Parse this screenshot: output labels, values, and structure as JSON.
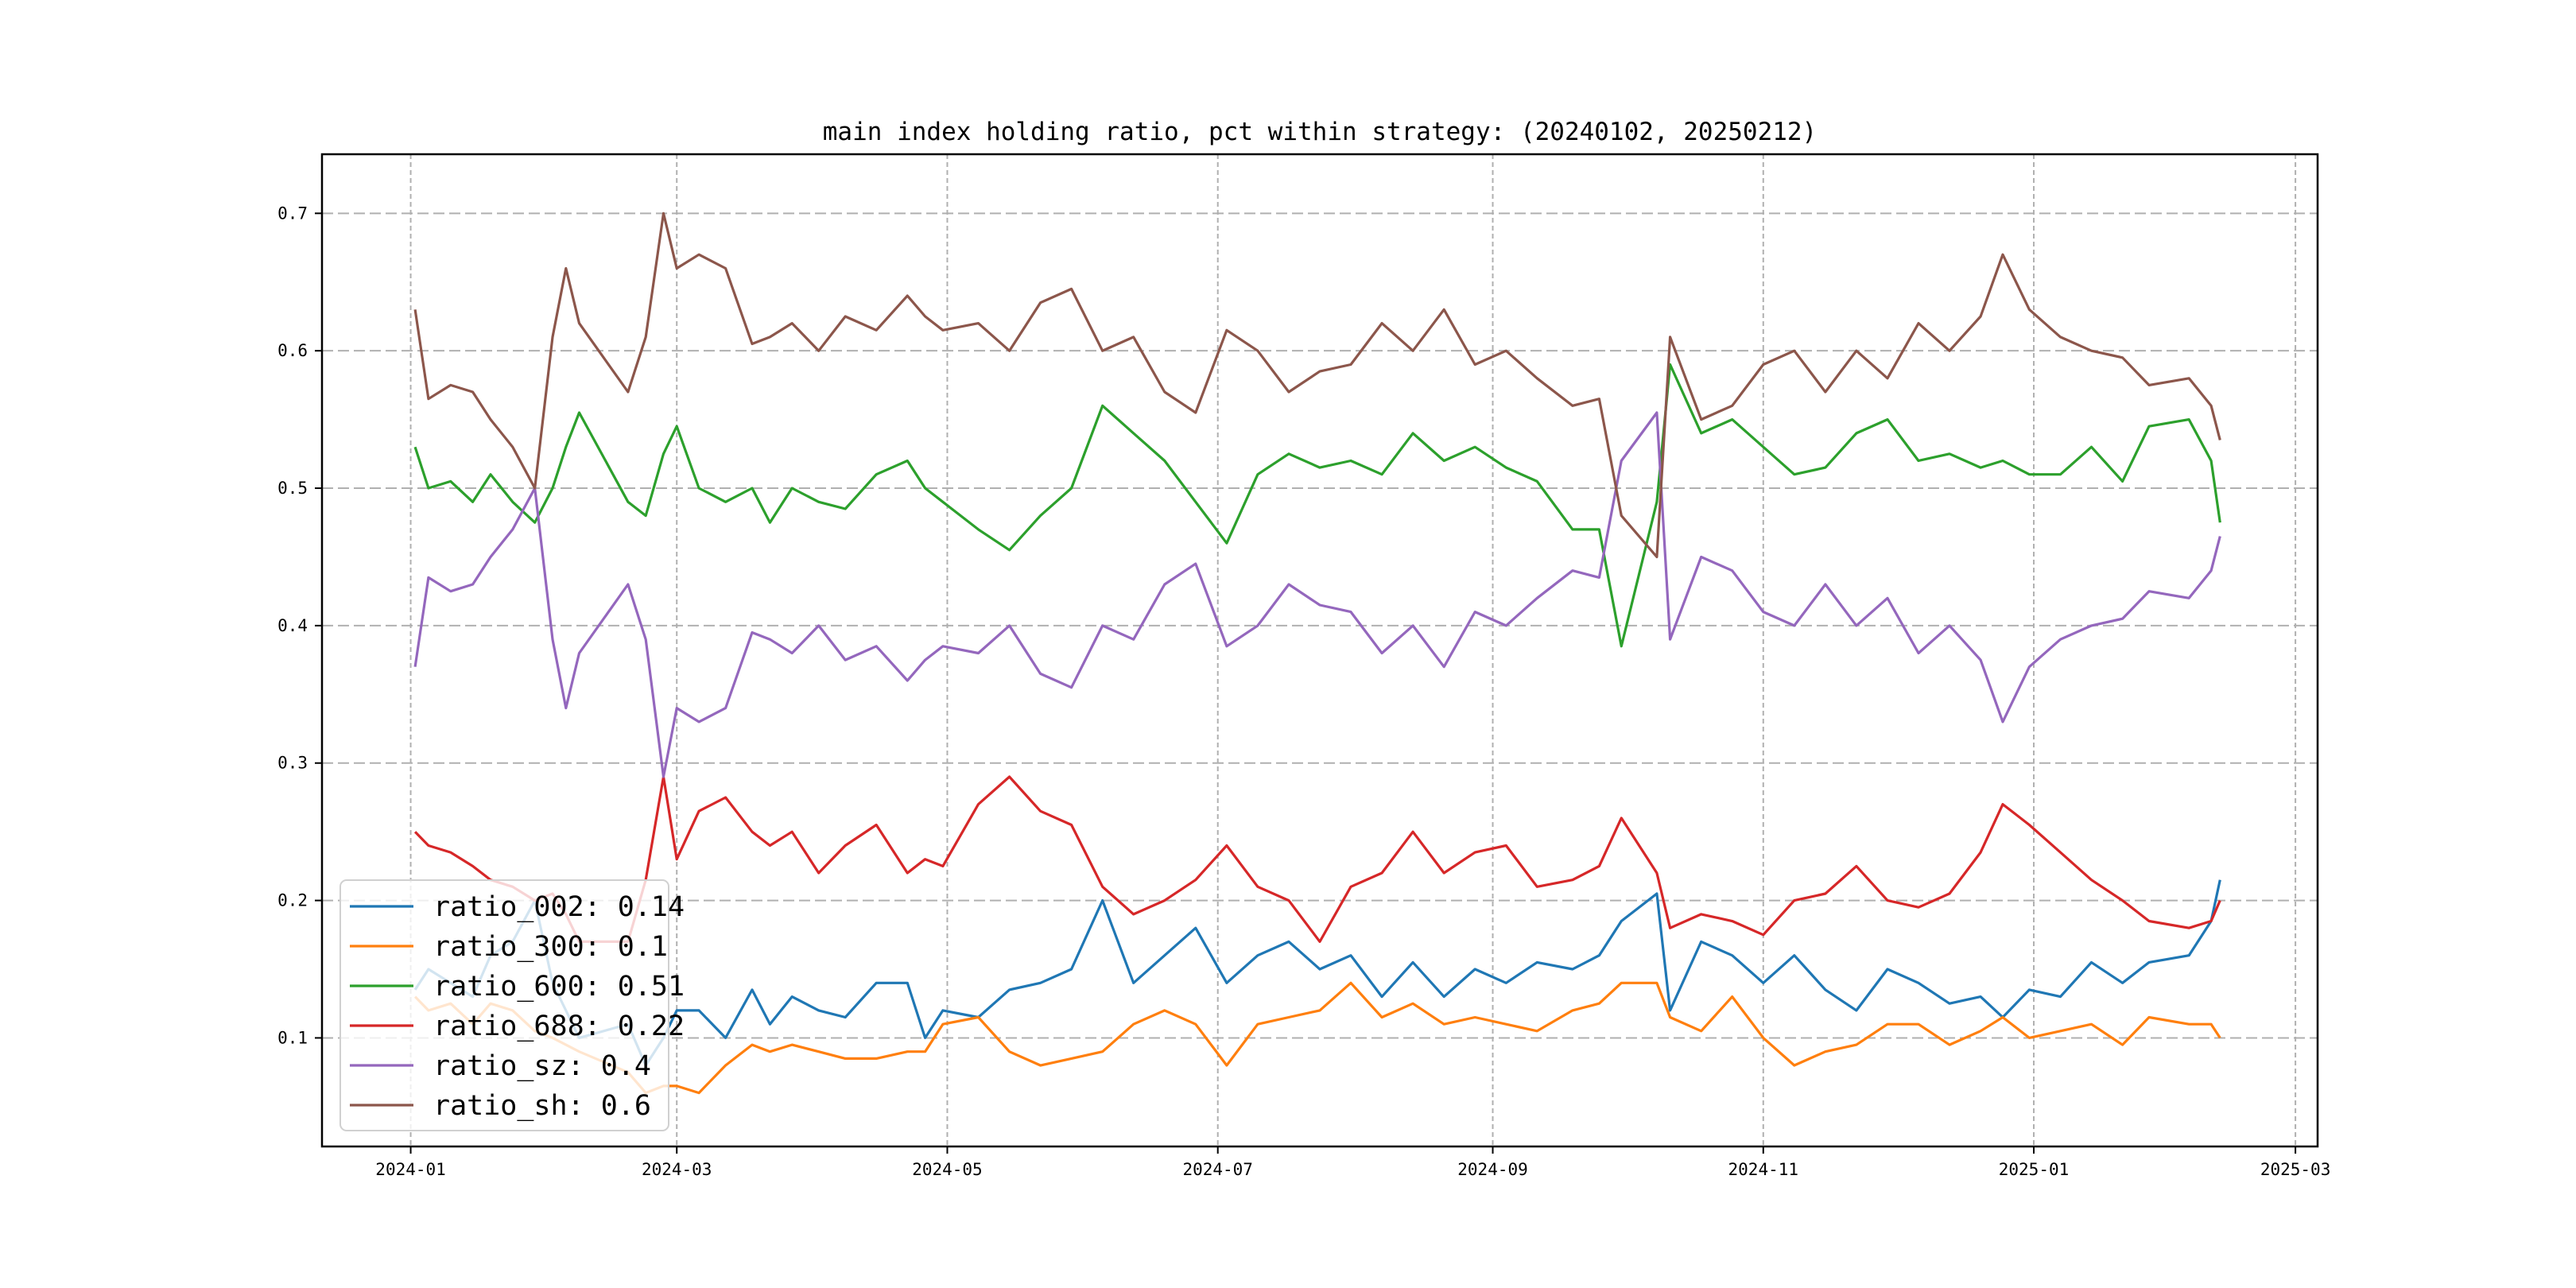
{
  "chart_data": {
    "type": "line",
    "title": "main index holding ratio, pct within strategy: (20240102, 20250212)",
    "xlabel": "",
    "ylabel": "",
    "xlim": [
      "2023-12-12",
      "2025-03-06"
    ],
    "ylim": [
      0.021,
      0.743
    ],
    "grid": true,
    "legend_position": "bottom-left",
    "x_ticks": [
      "2024-01",
      "2024-03",
      "2024-05",
      "2024-07",
      "2024-09",
      "2024-11",
      "2025-01",
      "2025-03"
    ],
    "y_ticks": [
      "0.1",
      "0.2",
      "0.3",
      "0.4",
      "0.5",
      "0.6",
      "0.7"
    ],
    "x": [
      "2024-01-02",
      "2024-01-05",
      "2024-01-10",
      "2024-01-15",
      "2024-01-19",
      "2024-01-24",
      "2024-01-29",
      "2024-02-02",
      "2024-02-05",
      "2024-02-08",
      "2024-02-19",
      "2024-02-23",
      "2024-02-27",
      "2024-03-01",
      "2024-03-06",
      "2024-03-12",
      "2024-03-18",
      "2024-03-22",
      "2024-03-27",
      "2024-04-02",
      "2024-04-08",
      "2024-04-15",
      "2024-04-22",
      "2024-04-26",
      "2024-04-30",
      "2024-05-08",
      "2024-05-15",
      "2024-05-22",
      "2024-05-29",
      "2024-06-05",
      "2024-06-12",
      "2024-06-19",
      "2024-06-26",
      "2024-07-03",
      "2024-07-10",
      "2024-07-17",
      "2024-07-24",
      "2024-07-31",
      "2024-08-07",
      "2024-08-14",
      "2024-08-21",
      "2024-08-28",
      "2024-09-04",
      "2024-09-11",
      "2024-09-19",
      "2024-09-25",
      "2024-09-30",
      "2024-10-08",
      "2024-10-11",
      "2024-10-18",
      "2024-10-25",
      "2024-11-01",
      "2024-11-08",
      "2024-11-15",
      "2024-11-22",
      "2024-11-29",
      "2024-12-06",
      "2024-12-13",
      "2024-12-20",
      "2024-12-25",
      "2024-12-31",
      "2025-01-07",
      "2025-01-14",
      "2025-01-21",
      "2025-01-27",
      "2025-02-05",
      "2025-02-10",
      "2025-02-12"
    ],
    "series": [
      {
        "name": "ratio_002",
        "legend": "ratio_002: 0.14",
        "color": "#1f77b4",
        "values": [
          0.135,
          0.15,
          0.14,
          0.13,
          0.16,
          0.17,
          0.2,
          0.14,
          0.12,
          0.1,
          0.11,
          0.08,
          0.1,
          0.12,
          0.12,
          0.1,
          0.135,
          0.11,
          0.13,
          0.12,
          0.115,
          0.14,
          0.14,
          0.1,
          0.12,
          0.115,
          0.135,
          0.14,
          0.15,
          0.2,
          0.14,
          0.16,
          0.18,
          0.14,
          0.16,
          0.17,
          0.15,
          0.16,
          0.13,
          0.155,
          0.13,
          0.15,
          0.14,
          0.155,
          0.15,
          0.16,
          0.185,
          0.205,
          0.12,
          0.17,
          0.16,
          0.14,
          0.16,
          0.135,
          0.12,
          0.15,
          0.14,
          0.125,
          0.13,
          0.115,
          0.135,
          0.13,
          0.155,
          0.14,
          0.155,
          0.16,
          0.185,
          0.215
        ]
      },
      {
        "name": "ratio_300",
        "legend": "ratio_300: 0.1",
        "color": "#ff7f0e",
        "values": [
          0.13,
          0.12,
          0.125,
          0.11,
          0.125,
          0.12,
          0.105,
          0.1,
          0.095,
          0.09,
          0.075,
          0.06,
          0.065,
          0.065,
          0.06,
          0.08,
          0.095,
          0.09,
          0.095,
          0.09,
          0.085,
          0.085,
          0.09,
          0.09,
          0.11,
          0.115,
          0.09,
          0.08,
          0.085,
          0.09,
          0.11,
          0.12,
          0.11,
          0.08,
          0.11,
          0.115,
          0.12,
          0.14,
          0.115,
          0.125,
          0.11,
          0.115,
          0.11,
          0.105,
          0.12,
          0.125,
          0.14,
          0.14,
          0.115,
          0.105,
          0.13,
          0.1,
          0.08,
          0.09,
          0.095,
          0.11,
          0.11,
          0.095,
          0.105,
          0.115,
          0.1,
          0.105,
          0.11,
          0.095,
          0.115,
          0.11,
          0.11,
          0.1
        ]
      },
      {
        "name": "ratio_600",
        "legend": "ratio_600: 0.51",
        "color": "#2ca02c",
        "values": [
          0.53,
          0.5,
          0.505,
          0.49,
          0.51,
          0.49,
          0.475,
          0.5,
          0.53,
          0.555,
          0.49,
          0.48,
          0.525,
          0.545,
          0.5,
          0.49,
          0.5,
          0.475,
          0.5,
          0.49,
          0.485,
          0.51,
          0.52,
          0.5,
          0.49,
          0.47,
          0.455,
          0.48,
          0.5,
          0.56,
          0.54,
          0.52,
          0.49,
          0.46,
          0.51,
          0.525,
          0.515,
          0.52,
          0.51,
          0.54,
          0.52,
          0.53,
          0.515,
          0.505,
          0.47,
          0.47,
          0.385,
          0.49,
          0.59,
          0.54,
          0.55,
          0.53,
          0.51,
          0.515,
          0.54,
          0.55,
          0.52,
          0.525,
          0.515,
          0.52,
          0.51,
          0.51,
          0.53,
          0.505,
          0.545,
          0.55,
          0.52,
          0.475
        ]
      },
      {
        "name": "ratio_688",
        "legend": "ratio_688: 0.22",
        "color": "#d62728",
        "values": [
          0.25,
          0.24,
          0.235,
          0.225,
          0.215,
          0.21,
          0.2,
          0.205,
          0.19,
          0.17,
          0.17,
          0.215,
          0.29,
          0.23,
          0.265,
          0.275,
          0.25,
          0.24,
          0.25,
          0.22,
          0.24,
          0.255,
          0.22,
          0.23,
          0.225,
          0.27,
          0.29,
          0.265,
          0.255,
          0.21,
          0.19,
          0.2,
          0.215,
          0.24,
          0.21,
          0.2,
          0.17,
          0.21,
          0.22,
          0.25,
          0.22,
          0.235,
          0.24,
          0.21,
          0.215,
          0.225,
          0.26,
          0.22,
          0.18,
          0.19,
          0.185,
          0.175,
          0.2,
          0.205,
          0.225,
          0.2,
          0.195,
          0.205,
          0.235,
          0.27,
          0.255,
          0.235,
          0.215,
          0.2,
          0.185,
          0.18,
          0.185,
          0.2
        ]
      },
      {
        "name": "ratio_sz",
        "legend": "ratio_sz: 0.4",
        "color": "#9467bd",
        "values": [
          0.37,
          0.435,
          0.425,
          0.43,
          0.45,
          0.47,
          0.5,
          0.39,
          0.34,
          0.38,
          0.43,
          0.39,
          0.29,
          0.34,
          0.33,
          0.34,
          0.395,
          0.39,
          0.38,
          0.4,
          0.375,
          0.385,
          0.36,
          0.375,
          0.385,
          0.38,
          0.4,
          0.365,
          0.355,
          0.4,
          0.39,
          0.43,
          0.445,
          0.385,
          0.4,
          0.43,
          0.415,
          0.41,
          0.38,
          0.4,
          0.37,
          0.41,
          0.4,
          0.42,
          0.44,
          0.435,
          0.52,
          0.555,
          0.39,
          0.45,
          0.44,
          0.41,
          0.4,
          0.43,
          0.4,
          0.42,
          0.38,
          0.4,
          0.375,
          0.33,
          0.37,
          0.39,
          0.4,
          0.405,
          0.425,
          0.42,
          0.44,
          0.465
        ]
      },
      {
        "name": "ratio_sh",
        "legend": "ratio_sh: 0.6",
        "color": "#8c564b",
        "values": [
          0.63,
          0.565,
          0.575,
          0.57,
          0.55,
          0.53,
          0.5,
          0.61,
          0.66,
          0.62,
          0.57,
          0.61,
          0.7,
          0.66,
          0.67,
          0.66,
          0.605,
          0.61,
          0.62,
          0.6,
          0.625,
          0.615,
          0.64,
          0.625,
          0.615,
          0.62,
          0.6,
          0.635,
          0.645,
          0.6,
          0.61,
          0.57,
          0.555,
          0.615,
          0.6,
          0.57,
          0.585,
          0.59,
          0.62,
          0.6,
          0.63,
          0.59,
          0.6,
          0.58,
          0.56,
          0.565,
          0.48,
          0.45,
          0.61,
          0.55,
          0.56,
          0.59,
          0.6,
          0.57,
          0.6,
          0.58,
          0.62,
          0.6,
          0.625,
          0.67,
          0.63,
          0.61,
          0.6,
          0.595,
          0.575,
          0.58,
          0.56,
          0.535
        ]
      }
    ]
  }
}
